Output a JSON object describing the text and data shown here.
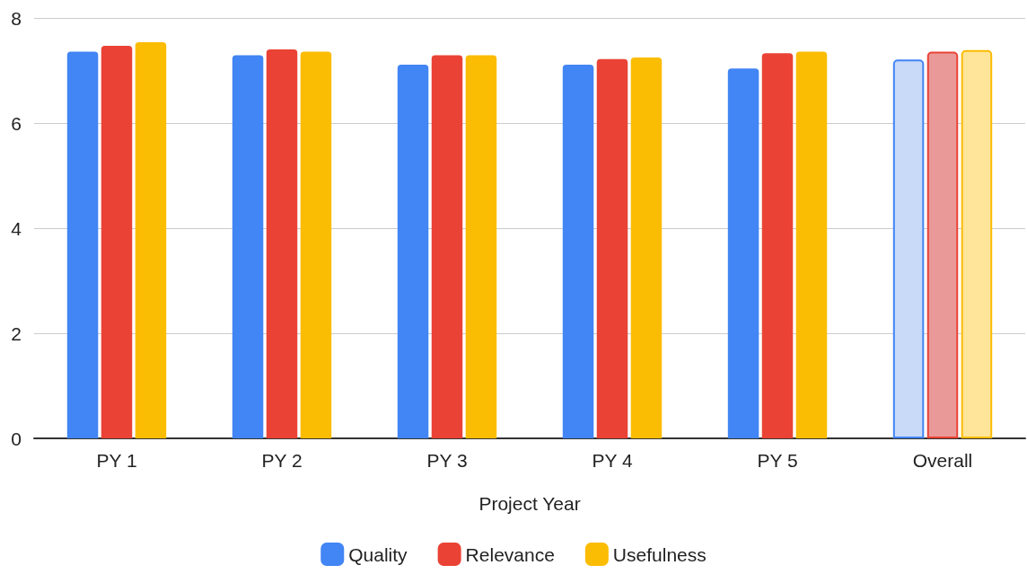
{
  "chart_data": {
    "type": "bar",
    "xlabel": "Project Year",
    "categories": [
      "PY 1",
      "PY 2",
      "PY 3",
      "PY 4",
      "PY 5",
      "Overall"
    ],
    "series": [
      {
        "name": "Quality",
        "color": "#4285f4",
        "values": [
          7.36,
          7.29,
          7.11,
          7.11,
          7.04,
          7.21
        ],
        "colors": [
          "#4285f4",
          "#4285f4",
          "#4285f4",
          "#4285f4",
          "#4285f4",
          "#c9daf8"
        ]
      },
      {
        "name": "Relevance",
        "color": "#ea4335",
        "values": [
          7.47,
          7.4,
          7.29,
          7.22,
          7.33,
          7.36
        ],
        "colors": [
          "#ea4335",
          "#ea4335",
          "#ea4335",
          "#ea4335",
          "#ea4335",
          "#ea9999"
        ]
      },
      {
        "name": "Usefulness",
        "color": "#fbbc04",
        "values": [
          7.54,
          7.36,
          7.29,
          7.25,
          7.36,
          7.39
        ],
        "colors": [
          "#fbbc04",
          "#fbbc04",
          "#fbbc04",
          "#fbbc04",
          "#fbbc04",
          "#ffe599"
        ]
      }
    ],
    "ylim": [
      0,
      8
    ],
    "yticks": [
      0,
      2,
      4,
      6,
      8
    ],
    "grid": "y",
    "legend": "bottom"
  }
}
